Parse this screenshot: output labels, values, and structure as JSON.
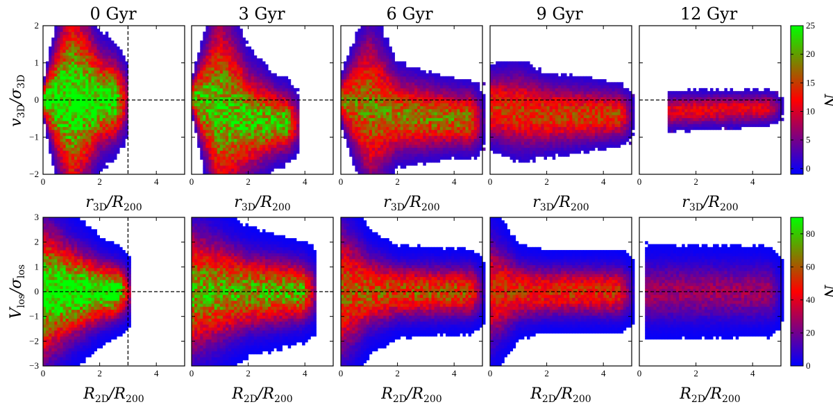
{
  "chart_data": {
    "type": "heatmap",
    "columns": [
      "0 Gyr",
      "3 Gyr",
      "6 Gyr",
      "9 Gyr",
      "12 Gyr"
    ],
    "rows": [
      {
        "name": "3D",
        "x_label_main": "r",
        "x_label_sub": "3D",
        "x_label_tail": "/R",
        "x_label_tail_sub": "200",
        "y_label_main": "v",
        "y_label_sub": "3D",
        "y_label_tail": "/σ",
        "y_label_tail_sub": "3D",
        "xlim": [
          0,
          5
        ],
        "ylim": [
          -2,
          2
        ],
        "xticks": [
          0,
          2,
          4
        ],
        "yticks": [
          -2,
          -1,
          0,
          1,
          2
        ],
        "xtick_labels": [
          "0",
          "2",
          "4"
        ],
        "ytick_labels": [
          "−2",
          "−1",
          "0",
          "1",
          "2"
        ],
        "colorbar": {
          "label": "N",
          "min": -1,
          "max": 25,
          "ticks": [
            "0",
            "5",
            "10",
            "15",
            "20",
            "25"
          ],
          "tick_values": [
            0,
            5,
            10,
            15,
            20,
            25
          ]
        },
        "bin_x": 0.1,
        "bin_y": 0.08,
        "panels": [
          {
            "title": "0 Gyr",
            "vline": 3,
            "hline": 0,
            "base": [
              [
                0,
                0.2
              ],
              [
                1,
                1.6
              ],
              [
                2,
                0.75
              ],
              [
                3,
                0.5
              ]
            ],
            "trend": [
              [
                0,
                0
              ],
              [
                3,
                0
              ]
            ],
            "density": 25,
            "xmax": 3.0
          },
          {
            "title": "3 Gyr",
            "hline": 0,
            "base": [
              [
                0,
                0.2
              ],
              [
                1,
                1.5
              ],
              [
                2,
                0.8
              ],
              [
                3,
                0.5
              ],
              [
                5,
                0.3
              ]
            ],
            "trend": [
              [
                0,
                0.1
              ],
              [
                2,
                -0.55
              ],
              [
                5,
                -0.65
              ]
            ],
            "density": 22,
            "xmax": 3.8
          },
          {
            "title": "6 Gyr",
            "hline": 0,
            "base": [
              [
                0,
                0.3
              ],
              [
                1,
                1.2
              ],
              [
                2,
                0.6
              ],
              [
                4,
                0.45
              ],
              [
                5,
                0.45
              ]
            ],
            "trend": [
              [
                0,
                0
              ],
              [
                2,
                -0.4
              ],
              [
                5,
                -0.55
              ]
            ],
            "density": 18,
            "xmax": 5.0
          },
          {
            "title": "9 Gyr",
            "hline": 0,
            "base": [
              [
                0,
                0.5
              ],
              [
                1,
                0.6
              ],
              [
                2,
                0.5
              ],
              [
                5,
                0.35
              ]
            ],
            "trend": [
              [
                0,
                -0.2
              ],
              [
                2,
                -0.4
              ],
              [
                5,
                -0.4
              ]
            ],
            "density": 15,
            "xmax": 5.0
          },
          {
            "title": "12 Gyr",
            "hline": 0,
            "base": [
              [
                1,
                0.25
              ],
              [
                2,
                0.25
              ],
              [
                5,
                0.22
              ]
            ],
            "trend": [
              [
                1,
                -0.3
              ],
              [
                5,
                -0.2
              ]
            ],
            "density": 11,
            "xmin": 1.0,
            "xmax": 5.0
          }
        ]
      },
      {
        "name": "LOS",
        "x_label_main": "R",
        "x_label_sub": "2D",
        "x_label_tail": "/R",
        "x_label_tail_sub": "200",
        "y_label_main": "V",
        "y_label_sub": "los",
        "y_label_tail": "/σ",
        "y_label_tail_sub": "los",
        "xlim": [
          0,
          5
        ],
        "ylim": [
          -3,
          3
        ],
        "xticks": [
          0,
          2,
          4
        ],
        "yticks": [
          -3,
          -2,
          -1,
          0,
          1,
          2,
          3
        ],
        "xtick_labels": [
          "0",
          "2",
          "4"
        ],
        "ytick_labels": [
          "−3",
          "−2",
          "−1",
          "0",
          "1",
          "2",
          "3"
        ],
        "colorbar": {
          "label": "N",
          "min": 0,
          "max": 90,
          "ticks": [
            "0",
            "20",
            "40",
            "60",
            "80"
          ],
          "tick_values": [
            0,
            20,
            40,
            60,
            80
          ]
        },
        "bin_x": 0.1,
        "bin_y": 0.12,
        "panels": [
          {
            "title": "0 Gyr",
            "vline": 3,
            "hline": 0,
            "base": [
              [
                0,
                1.6
              ],
              [
                1,
                1.1
              ],
              [
                2,
                0.75
              ],
              [
                3,
                0.55
              ]
            ],
            "trend": [
              [
                0,
                0
              ],
              [
                3,
                0
              ]
            ],
            "density": 95,
            "xmax": 3.1
          },
          {
            "title": "3 Gyr",
            "hline": 0,
            "base": [
              [
                0,
                1.5
              ],
              [
                1,
                1.2
              ],
              [
                2,
                0.9
              ],
              [
                4,
                0.7
              ],
              [
                5,
                0.6
              ]
            ],
            "trend": [
              [
                0,
                0
              ],
              [
                5,
                0
              ]
            ],
            "density": 75,
            "xmax": 4.4
          },
          {
            "title": "6 Gyr",
            "hline": 0,
            "base": [
              [
                0,
                1.6
              ],
              [
                1,
                0.9
              ],
              [
                2,
                0.65
              ],
              [
                5,
                0.6
              ]
            ],
            "trend": [
              [
                0,
                0
              ],
              [
                5,
                0
              ]
            ],
            "density": 60,
            "xmax": 5.0
          },
          {
            "title": "9 Gyr",
            "hline": 0,
            "base": [
              [
                0,
                1.3
              ],
              [
                1,
                0.7
              ],
              [
                2,
                0.6
              ],
              [
                5,
                0.6
              ]
            ],
            "trend": [
              [
                0,
                0
              ],
              [
                5,
                0
              ]
            ],
            "density": 52,
            "xmax": 5.0
          },
          {
            "title": "12 Gyr",
            "hline": 0,
            "base": [
              [
                0,
                0.75
              ],
              [
                5,
                0.7
              ]
            ],
            "trend": [
              [
                0,
                0
              ],
              [
                5,
                0
              ]
            ],
            "density": 28,
            "xmin": 0.2,
            "xmax": 5.0
          }
        ]
      }
    ]
  }
}
